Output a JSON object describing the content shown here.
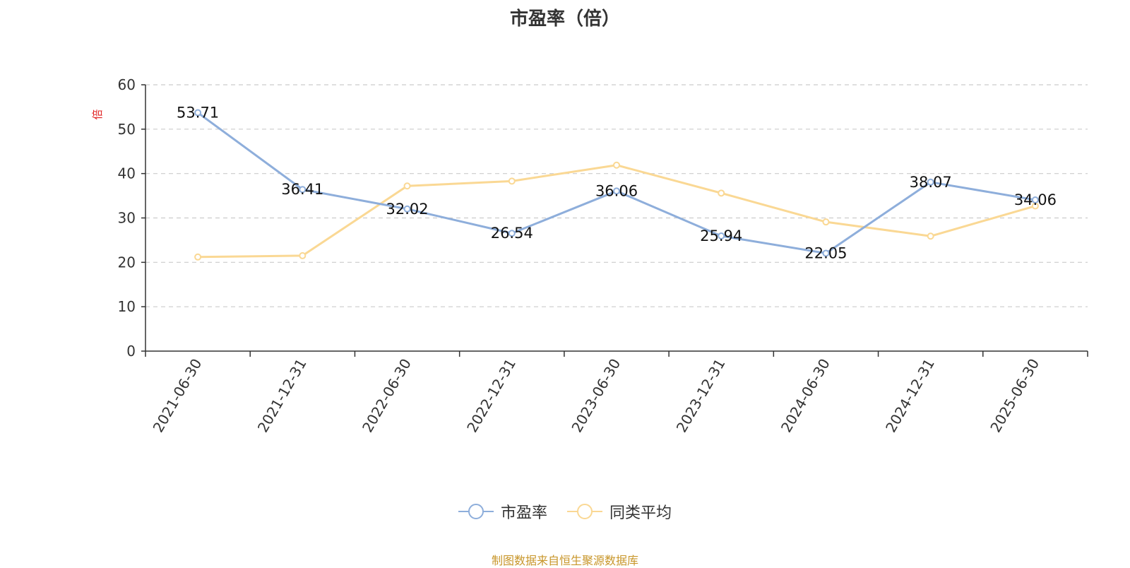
{
  "chart_data": {
    "type": "line",
    "title": "市盈率（倍）",
    "ylabel": "倍",
    "ylim": [
      0,
      60
    ],
    "yticks": [
      0,
      10,
      20,
      30,
      40,
      50,
      60
    ],
    "grid": true,
    "legend_position": "bottom",
    "categories": [
      "2021-06-30",
      "2021-12-31",
      "2022-06-30",
      "2022-12-31",
      "2023-06-30",
      "2023-12-31",
      "2024-06-30",
      "2024-12-31",
      "2025-06-30"
    ],
    "series": [
      {
        "name": "市盈率",
        "color": "#8eaedb",
        "values": [
          53.71,
          36.41,
          32.02,
          26.54,
          36.06,
          25.94,
          22.05,
          38.07,
          34.06
        ],
        "labels": [
          "53.71",
          "36.41",
          "32.02",
          "26.54",
          "36.06",
          "25.94",
          "22.05",
          "38.07",
          "34.06"
        ]
      },
      {
        "name": "同类平均",
        "color": "#fad894",
        "values": [
          21.2,
          21.5,
          37.2,
          38.3,
          41.9,
          35.6,
          29.1,
          25.9,
          32.7
        ]
      }
    ]
  },
  "source_note": "制图数据来自恒生聚源数据库"
}
